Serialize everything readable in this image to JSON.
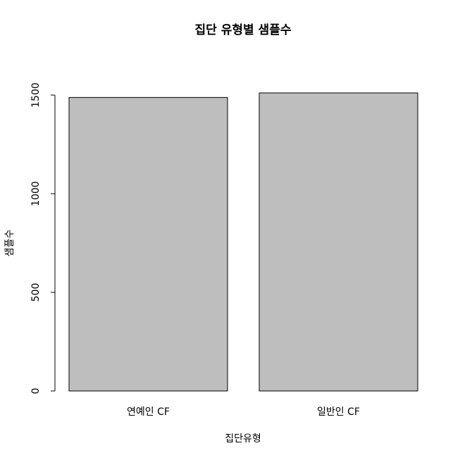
{
  "chart_data": {
    "type": "bar",
    "title": "집단 유형별 샘플수",
    "xlabel": "집단유형",
    "ylabel": "샘플수",
    "categories": [
      "연예인 CF",
      "일반인 CF"
    ],
    "values": [
      1488,
      1511
    ],
    "ylim": [
      0,
      1500
    ],
    "yticks": [
      0,
      500,
      1000,
      1500
    ],
    "grid": false,
    "legend": "none",
    "bar_color": "#bebebe"
  }
}
